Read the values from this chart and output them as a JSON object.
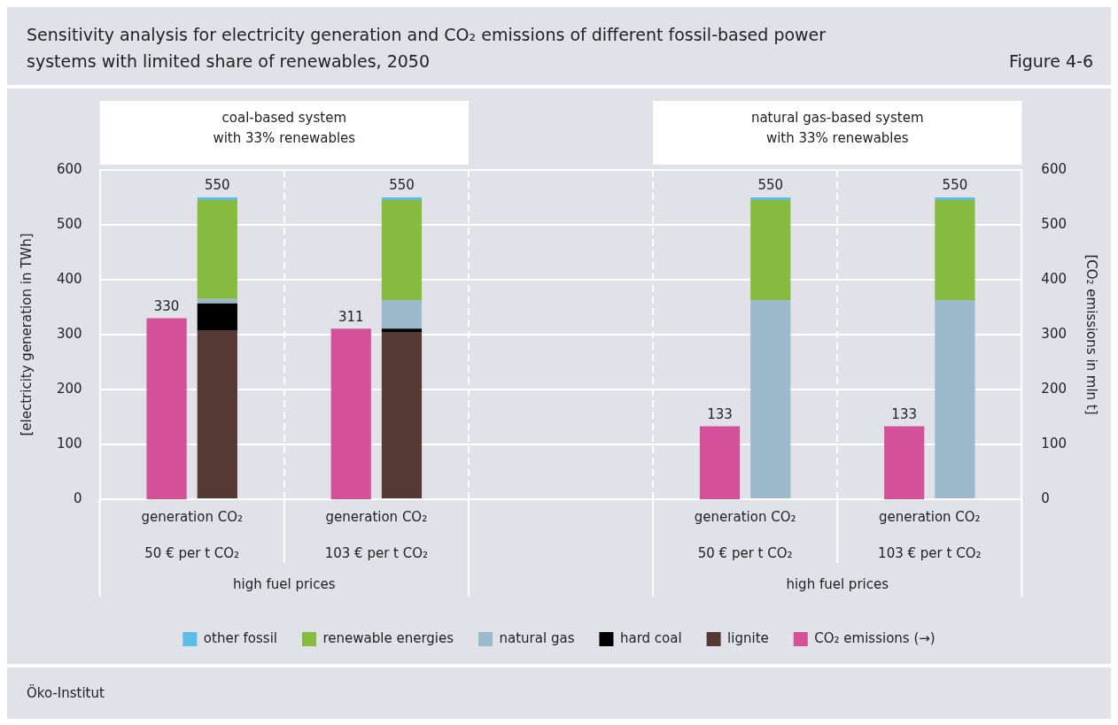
{
  "chart_data": {
    "type": "bar",
    "title": "Sensitivity analysis for electricity generation and CO₂ emissions of different fossil-based power systems with limited share of renewables, 2050",
    "subtitle": "Figure 4-6",
    "ylabel": "[electricity generation in TWh]",
    "y2label": "[CO₂ emissions in mln t]",
    "categories": [
      "generation CO₂",
      "generation CO₂",
      null,
      "generation CO₂",
      "generation CO₂"
    ],
    "stacked": true,
    "series": [
      {
        "name": "CO₂ emissions (→)",
        "color": "#d4519a",
        "axis": "y2",
        "values": [
          330,
          311,
          null,
          133,
          133
        ],
        "value_labels": [
          "330",
          "311",
          null,
          "133",
          "133"
        ]
      },
      {
        "name": "lignite",
        "color": "#553934",
        "values": [
          308,
          305,
          null,
          null,
          null
        ]
      },
      {
        "name": "hard coal",
        "color": "#000000",
        "values": [
          49,
          6,
          null,
          null,
          null
        ]
      },
      {
        "name": "natural gas",
        "color": "#9bbacb",
        "values": [
          8,
          52,
          null,
          363,
          363
        ]
      },
      {
        "name": "renewable energies",
        "color": "#87bb3f",
        "values": [
          180,
          182,
          null,
          182,
          182
        ]
      },
      {
        "name": "other fossil",
        "color": "#5cbde9",
        "values": [
          5,
          5,
          null,
          5,
          5
        ]
      }
    ],
    "totals": [
      "550",
      "550",
      null,
      "550",
      "550"
    ],
    "ylim": [
      0,
      600
    ],
    "yticks": [
      0,
      100,
      200,
      300,
      400,
      500,
      600
    ],
    "y2lim": [
      0,
      600
    ],
    "y2ticks": [
      0,
      100,
      200,
      300,
      400,
      500,
      600
    ],
    "grid": true,
    "legend": "bottom",
    "annotations": [
      "coal-based system\nwith 33% renewables",
      "natural gas-based system\nwith 33% renewables",
      "50 € per t CO₂",
      "103 € per t CO₂",
      "50 € per t CO₂",
      "103 € per t CO₂",
      "high fuel prices",
      "high fuel prices",
      "Öko-Institut"
    ]
  }
}
